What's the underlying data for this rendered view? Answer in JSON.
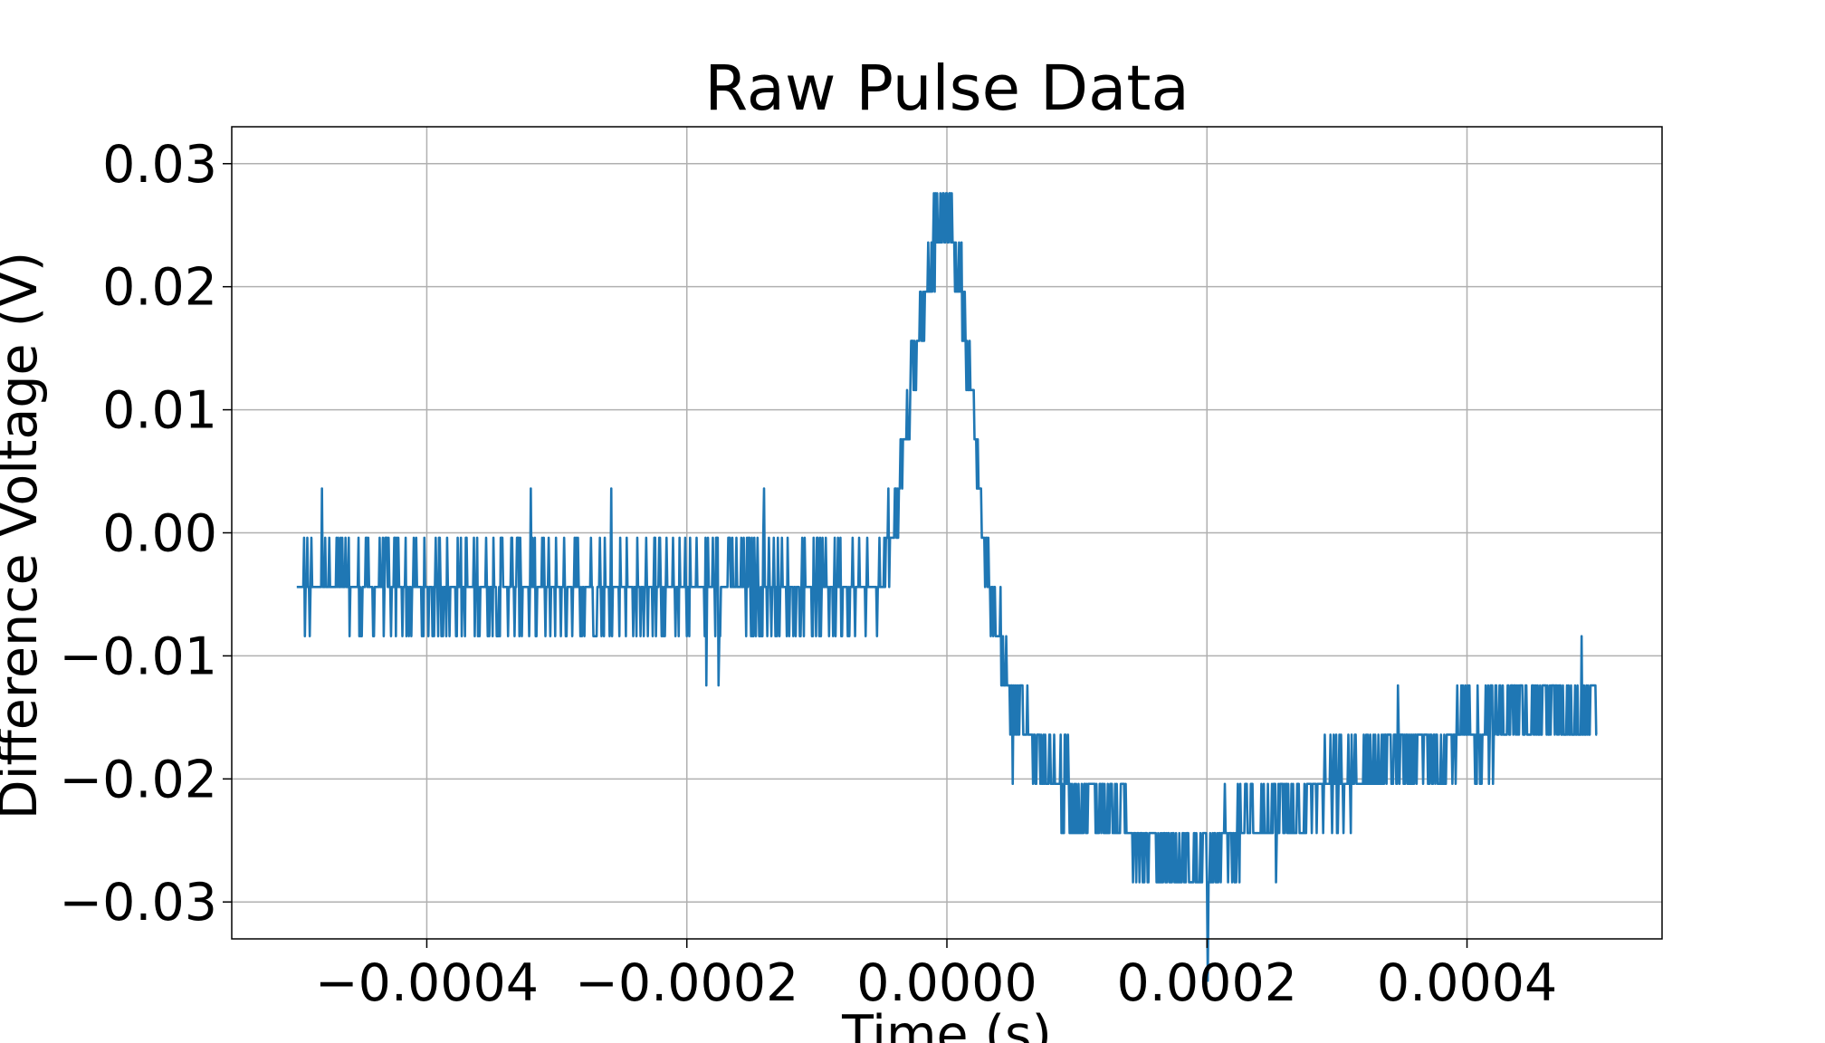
{
  "chart_data": {
    "type": "line",
    "title": "Raw Pulse Data",
    "xlabel": "Time (s)",
    "ylabel": "Difference Voltage (V)",
    "xlim": [
      -0.00055,
      0.00055
    ],
    "ylim": [
      -0.033,
      0.033
    ],
    "x_ticks": [
      -0.0004,
      -0.0002,
      0.0,
      0.0002,
      0.0004
    ],
    "x_tick_labels": [
      "−0.0004",
      "−0.0002",
      "0.0000",
      "0.0002",
      "0.0004"
    ],
    "y_ticks": [
      0.03,
      0.02,
      0.01,
      0.0,
      -0.01,
      -0.02,
      -0.03
    ],
    "y_tick_labels": [
      "0.03",
      "0.02",
      "0.01",
      "0.00",
      "−0.01",
      "−0.02",
      "−0.03"
    ],
    "grid": true,
    "series": [
      {
        "color": "#1f77b4",
        "x": [
          -0.0005,
          -0.0004,
          -0.0003,
          -0.0002,
          -0.0001,
          -5e-05,
          -4e-05,
          -3e-05,
          -2e-05,
          -1e-05,
          0.0,
          1e-05,
          2e-05,
          3e-05,
          4e-05,
          5e-05,
          6e-05,
          8e-05,
          0.0001,
          0.00013,
          0.00015,
          0.00018,
          0.0002,
          0.00022,
          0.00025,
          0.0003,
          0.00035,
          0.0004,
          0.00045,
          0.0005
        ],
        "y": [
          -0.004,
          -0.004,
          -0.004,
          -0.004,
          -0.004,
          -0.004,
          0.002,
          0.01,
          0.018,
          0.024,
          0.026,
          0.022,
          0.01,
          -0.002,
          -0.008,
          -0.013,
          -0.015,
          -0.019,
          -0.021,
          -0.022,
          -0.025,
          -0.027,
          -0.026,
          -0.024,
          -0.022,
          -0.02,
          -0.018,
          -0.016,
          -0.014,
          -0.014
        ]
      }
    ]
  }
}
